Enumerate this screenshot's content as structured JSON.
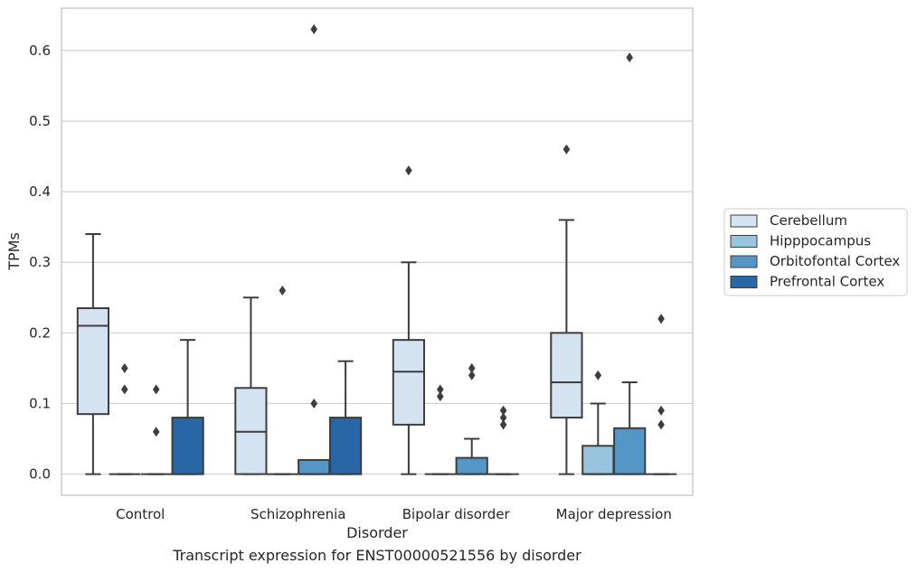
{
  "chart_data": {
    "type": "box",
    "title": "",
    "caption": "Transcript expression for ENST00000521556 by disorder",
    "xlabel": "Disorder",
    "ylabel": "TPMs",
    "ylim": [
      -0.03,
      0.66
    ],
    "yticks": [
      0.0,
      0.1,
      0.2,
      0.3,
      0.4,
      0.5,
      0.6
    ],
    "grid": "horizontal",
    "legend_position": "right",
    "categories": [
      "Control",
      "Schizophrenia",
      "Bipolar disorder",
      "Major depression"
    ],
    "series": [
      {
        "name": "Cerebellum",
        "color": "#d4e3f1",
        "boxes": [
          {
            "whisker_low": 0.0,
            "q1": 0.085,
            "median": 0.21,
            "q3": 0.235,
            "whisker_high": 0.34,
            "outliers": []
          },
          {
            "whisker_low": 0.0,
            "q1": 0.0,
            "median": 0.06,
            "q3": 0.122,
            "whisker_high": 0.25,
            "outliers": []
          },
          {
            "whisker_low": 0.0,
            "q1": 0.07,
            "median": 0.145,
            "q3": 0.19,
            "whisker_high": 0.3,
            "outliers": [
              0.43
            ]
          },
          {
            "whisker_low": 0.0,
            "q1": 0.08,
            "median": 0.13,
            "q3": 0.2,
            "whisker_high": 0.36,
            "outliers": [
              0.46
            ]
          }
        ]
      },
      {
        "name": "Hipppocampus",
        "color": "#99c4de",
        "boxes": [
          {
            "whisker_low": 0.0,
            "q1": 0.0,
            "median": 0.0,
            "q3": 0.0,
            "whisker_high": 0.0,
            "outliers": [
              0.15,
              0.12
            ]
          },
          {
            "whisker_low": 0.0,
            "q1": 0.0,
            "median": 0.0,
            "q3": 0.0,
            "whisker_high": 0.0,
            "outliers": [
              0.26
            ]
          },
          {
            "whisker_low": 0.0,
            "q1": 0.0,
            "median": 0.0,
            "q3": 0.0,
            "whisker_high": 0.0,
            "outliers": [
              0.12,
              0.11
            ]
          },
          {
            "whisker_low": 0.0,
            "q1": 0.0,
            "median": 0.0,
            "q3": 0.04,
            "whisker_high": 0.1,
            "outliers": [
              0.14
            ]
          }
        ]
      },
      {
        "name": "Orbitofontal Cortex",
        "color": "#5497c6",
        "boxes": [
          {
            "whisker_low": 0.0,
            "q1": 0.0,
            "median": 0.0,
            "q3": 0.0,
            "whisker_high": 0.0,
            "outliers": [
              0.12,
              0.06
            ]
          },
          {
            "whisker_low": 0.0,
            "q1": 0.0,
            "median": 0.0,
            "q3": 0.02,
            "whisker_high": 0.02,
            "outliers": [
              0.63,
              0.1
            ]
          },
          {
            "whisker_low": 0.0,
            "q1": 0.0,
            "median": 0.0,
            "q3": 0.023,
            "whisker_high": 0.05,
            "outliers": [
              0.15,
              0.14
            ]
          },
          {
            "whisker_low": 0.0,
            "q1": 0.0,
            "median": 0.0,
            "q3": 0.065,
            "whisker_high": 0.13,
            "outliers": [
              0.59
            ]
          }
        ]
      },
      {
        "name": "Prefrontal Cortex",
        "color": "#2866a6",
        "boxes": [
          {
            "whisker_low": 0.0,
            "q1": 0.0,
            "median": 0.0,
            "q3": 0.08,
            "whisker_high": 0.19,
            "outliers": []
          },
          {
            "whisker_low": 0.0,
            "q1": 0.0,
            "median": 0.0,
            "q3": 0.08,
            "whisker_high": 0.16,
            "outliers": []
          },
          {
            "whisker_low": 0.0,
            "q1": 0.0,
            "median": 0.0,
            "q3": 0.0,
            "whisker_high": 0.0,
            "outliers": [
              0.09,
              0.08,
              0.07
            ]
          },
          {
            "whisker_low": 0.0,
            "q1": 0.0,
            "median": 0.0,
            "q3": 0.0,
            "whisker_high": 0.0,
            "outliers": [
              0.22,
              0.09,
              0.07
            ]
          }
        ]
      }
    ],
    "colors": {
      "line": "#3d3d3d",
      "grid": "#d0d0d0",
      "frame": "#cccccc"
    }
  }
}
